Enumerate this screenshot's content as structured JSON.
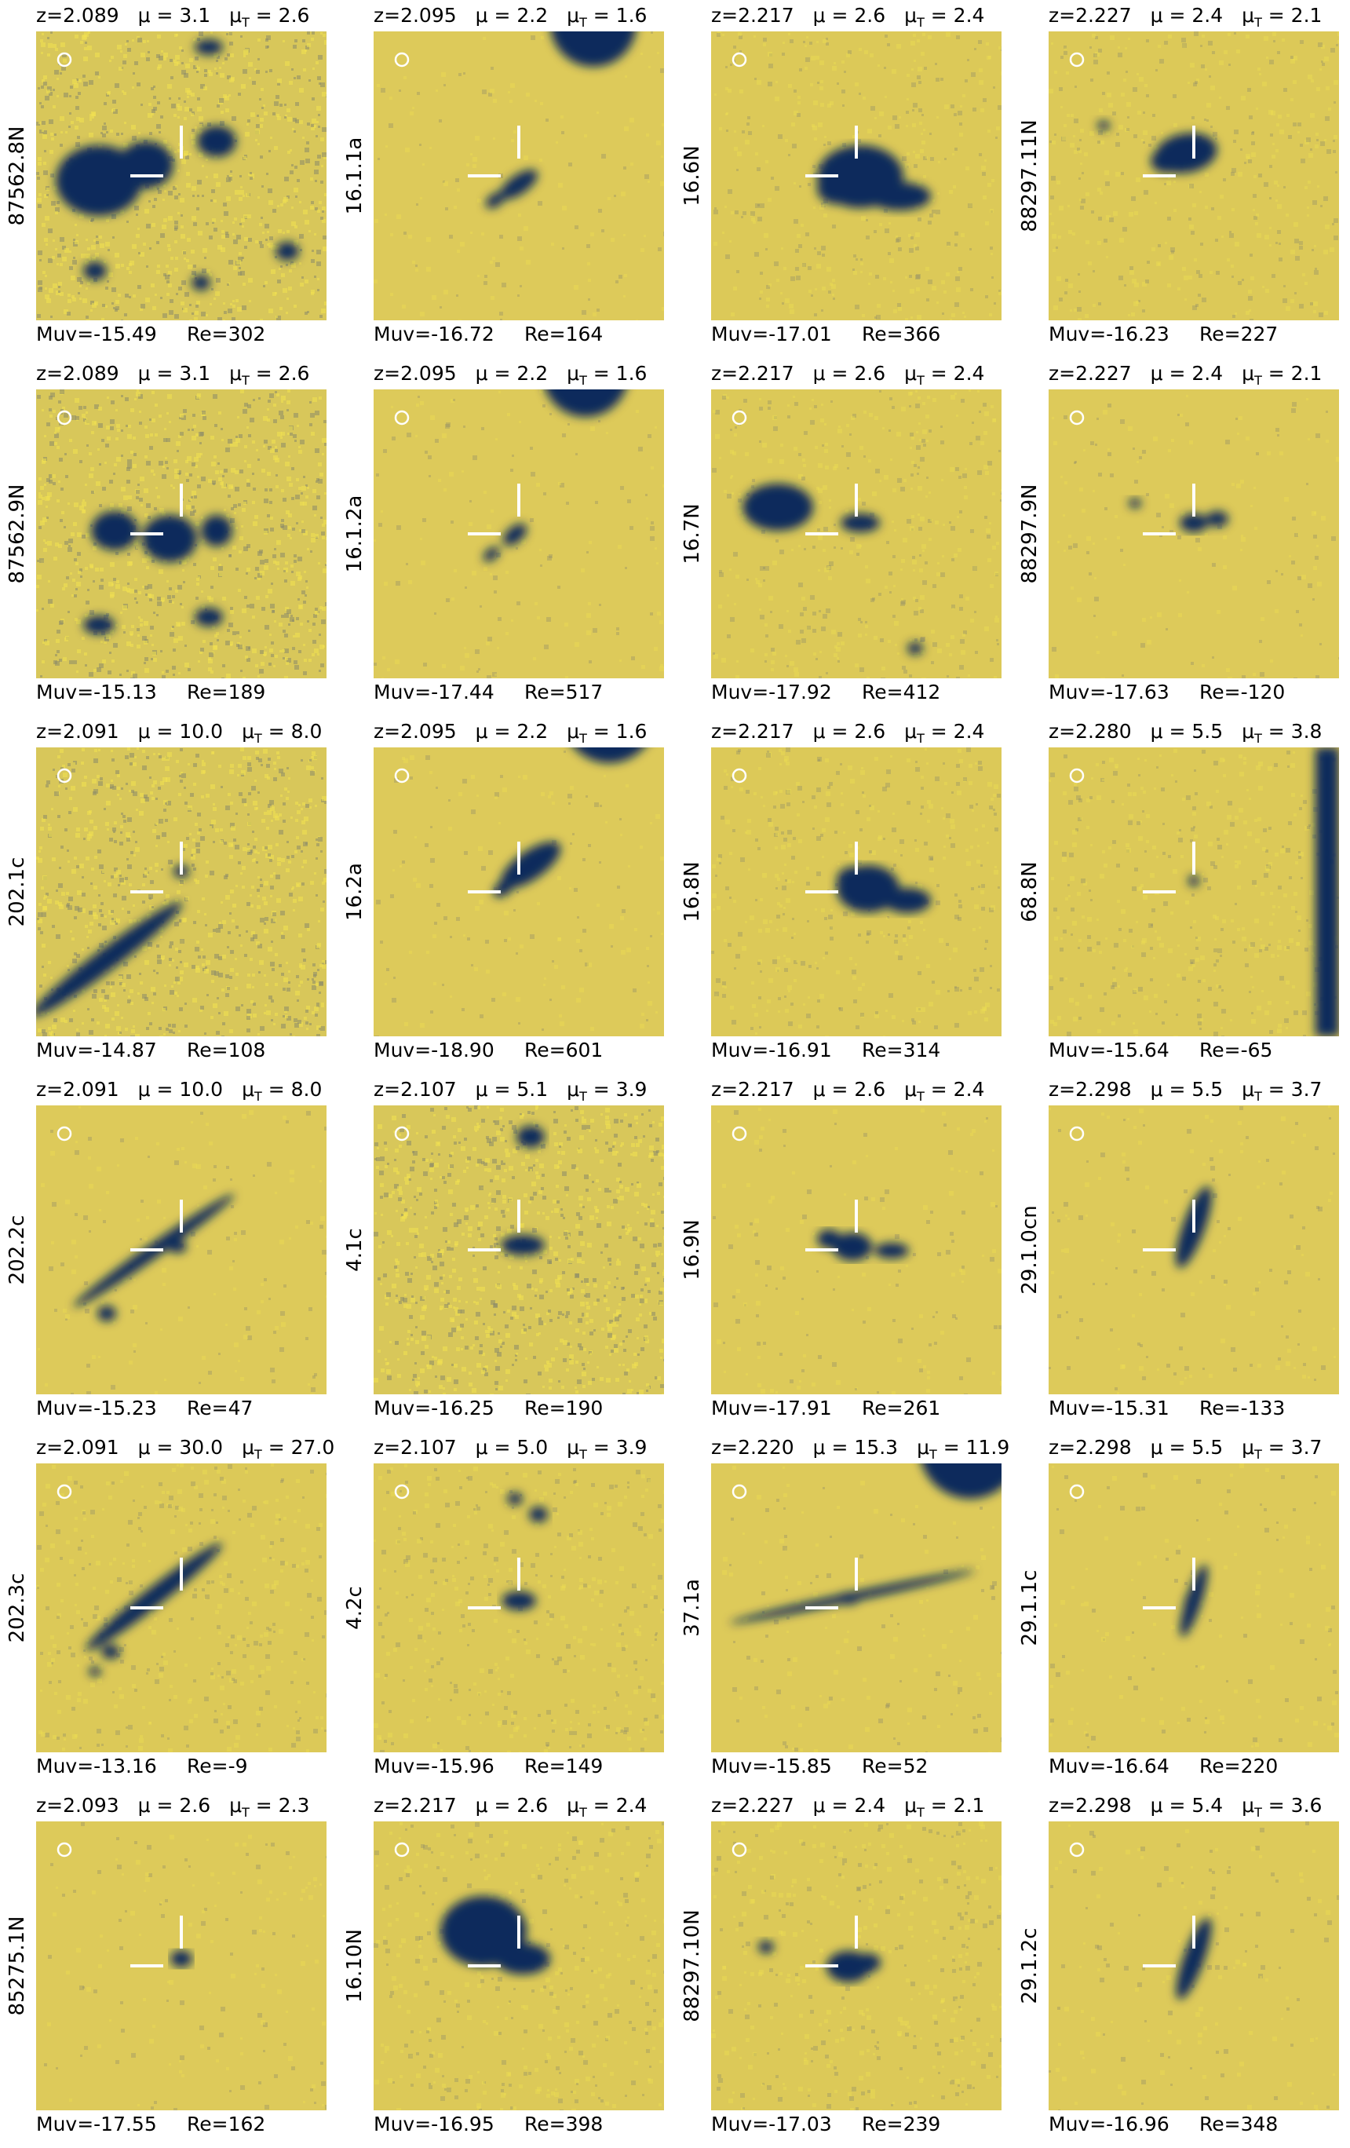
{
  "figure": {
    "panels": [
      {
        "z": "z=2.089",
        "mu": "μ = 3.1",
        "mut": "μ",
        "mut_sub": "T",
        "mut_val": " = 2.6",
        "id": "87562.8N",
        "muv": "Muv=-15.49",
        "re": "Re=302",
        "style": "noisy",
        "blobs": "m1"
      },
      {
        "z": "z=2.095",
        "mu": "μ = 2.2",
        "mut": "μ",
        "mut_sub": "T",
        "mut_val": " = 1.6",
        "id": "16.1.1a",
        "muv": "Muv=-16.72",
        "re": "Re=164",
        "style": "smooth",
        "blobs": "m2"
      },
      {
        "z": "z=2.217",
        "mu": "μ = 2.6",
        "mut": "μ",
        "mut_sub": "T",
        "mut_val": " = 2.4",
        "id": "16.6N",
        "muv": "Muv=-17.01",
        "re": "Re=366",
        "style": "mid",
        "blobs": "m3"
      },
      {
        "z": "z=2.227",
        "mu": "μ = 2.4",
        "mut": "μ",
        "mut_sub": "T",
        "mut_val": " = 2.1",
        "id": "88297.11N",
        "muv": "Muv=-16.23",
        "re": "Re=227",
        "style": "mid",
        "blobs": "m4"
      },
      {
        "z": "z=2.089",
        "mu": "μ = 3.1",
        "mut": "μ",
        "mut_sub": "T",
        "mut_val": " = 2.6",
        "id": "87562.9N",
        "muv": "Muv=-15.13",
        "re": "Re=189",
        "style": "noisy",
        "blobs": "m5"
      },
      {
        "z": "z=2.095",
        "mu": "μ = 2.2",
        "mut": "μ",
        "mut_sub": "T",
        "mut_val": " = 1.6",
        "id": "16.1.2a",
        "muv": "Muv=-17.44",
        "re": "Re=517",
        "style": "smooth",
        "blobs": "m6"
      },
      {
        "z": "z=2.217",
        "mu": "μ = 2.6",
        "mut": "μ",
        "mut_sub": "T",
        "mut_val": " = 2.4",
        "id": "16.7N",
        "muv": "Muv=-17.92",
        "re": "Re=412",
        "style": "mid",
        "blobs": "m7"
      },
      {
        "z": "z=2.227",
        "mu": "μ = 2.4",
        "mut": "μ",
        "mut_sub": "T",
        "mut_val": " = 2.1",
        "id": "88297.9N",
        "muv": "Muv=-17.63",
        "re": "Re=-120",
        "style": "smooth",
        "blobs": "m8"
      },
      {
        "z": "z=2.091",
        "mu": "μ = 10.0",
        "mut": "μ",
        "mut_sub": "T",
        "mut_val": " = 8.0",
        "id": "202.1c",
        "muv": "Muv=-14.87",
        "re": "Re=108",
        "style": "noisy",
        "blobs": "m9"
      },
      {
        "z": "z=2.095",
        "mu": "μ = 2.2",
        "mut": "μ",
        "mut_sub": "T",
        "mut_val": " = 1.6",
        "id": "16.2a",
        "muv": "Muv=-18.90",
        "re": "Re=601",
        "style": "smooth",
        "blobs": "m10"
      },
      {
        "z": "z=2.217",
        "mu": "μ = 2.6",
        "mut": "μ",
        "mut_sub": "T",
        "mut_val": " = 2.4",
        "id": "16.8N",
        "muv": "Muv=-16.91",
        "re": "Re=314",
        "style": "mid",
        "blobs": "m11"
      },
      {
        "z": "z=2.280",
        "mu": "μ = 5.5",
        "mut": "μ",
        "mut_sub": "T",
        "mut_val": " = 3.8",
        "id": "68.8N",
        "muv": "Muv=-15.64",
        "re": "Re=-65",
        "style": "mid",
        "blobs": "m12"
      },
      {
        "z": "z=2.091",
        "mu": "μ = 10.0",
        "mut": "μ",
        "mut_sub": "T",
        "mut_val": " = 8.0",
        "id": "202.2c",
        "muv": "Muv=-15.23",
        "re": "Re=47",
        "style": "smooth",
        "blobs": "m13"
      },
      {
        "z": "z=2.107",
        "mu": "μ = 5.1",
        "mut": "μ",
        "mut_sub": "T",
        "mut_val": " = 3.9",
        "id": "4.1c",
        "muv": "Muv=-16.25",
        "re": "Re=190",
        "style": "noisy",
        "blobs": "m14"
      },
      {
        "z": "z=2.217",
        "mu": "μ = 2.6",
        "mut": "μ",
        "mut_sub": "T",
        "mut_val": " = 2.4",
        "id": "16.9N",
        "muv": "Muv=-17.91",
        "re": "Re=261",
        "style": "smooth",
        "blobs": "m15"
      },
      {
        "z": "z=2.298",
        "mu": "μ = 5.5",
        "mut": "μ",
        "mut_sub": "T",
        "mut_val": " = 3.7",
        "id": "29.1.0cn",
        "muv": "Muv=-15.31",
        "re": "Re=-133",
        "style": "smooth",
        "blobs": "m16"
      },
      {
        "z": "z=2.091",
        "mu": "μ = 30.0",
        "mut": "μ",
        "mut_sub": "T",
        "mut_val": " = 27.0",
        "id": "202.3c",
        "muv": "Muv=-13.16",
        "re": "Re=-9",
        "style": "mid",
        "blobs": "m17"
      },
      {
        "z": "z=2.107",
        "mu": "μ = 5.0",
        "mut": "μ",
        "mut_sub": "T",
        "mut_val": " = 3.9",
        "id": "4.2c",
        "muv": "Muv=-15.96",
        "re": "Re=149",
        "style": "mid",
        "blobs": "m18"
      },
      {
        "z": "z=2.220",
        "mu": "μ = 15.3",
        "mut": "μ",
        "mut_sub": "T",
        "mut_val": " = 11.9",
        "id": "37.1a",
        "muv": "Muv=-15.85",
        "re": "Re=52",
        "style": "smooth",
        "blobs": "m19"
      },
      {
        "z": "z=2.298",
        "mu": "μ = 5.5",
        "mut": "μ",
        "mut_sub": "T",
        "mut_val": " = 3.7",
        "id": "29.1.1c",
        "muv": "Muv=-16.64",
        "re": "Re=220",
        "style": "smooth",
        "blobs": "m20"
      },
      {
        "z": "z=2.093",
        "mu": "μ = 2.6",
        "mut": "μ",
        "mut_sub": "T",
        "mut_val": " = 2.3",
        "id": "85275.1N",
        "muv": "Muv=-17.55",
        "re": "Re=162",
        "style": "smooth",
        "blobs": "m21"
      },
      {
        "z": "z=2.217",
        "mu": "μ = 2.6",
        "mut": "μ",
        "mut_sub": "T",
        "mut_val": " = 2.4",
        "id": "16.10N",
        "muv": "Muv=-16.95",
        "re": "Re=398",
        "style": "mid",
        "blobs": "m22"
      },
      {
        "z": "z=2.227",
        "mu": "μ = 2.4",
        "mut": "μ",
        "mut_sub": "T",
        "mut_val": " = 2.1",
        "id": "88297.10N",
        "muv": "Muv=-17.03",
        "re": "Re=239",
        "style": "mid",
        "blobs": "m23"
      },
      {
        "z": "z=2.298",
        "mu": "μ = 5.4",
        "mut": "μ",
        "mut_sub": "T",
        "mut_val": " = 3.6",
        "id": "29.1.2c",
        "muv": "Muv=-16.96",
        "re": "Re=348",
        "style": "smooth",
        "blobs": "m24"
      }
    ],
    "colors": {
      "background_yellow": "#dcc857",
      "bright_yellow": "#f2e150",
      "dark_navy": "#0e2a5c",
      "marker_white": "#ffffff"
    }
  }
}
